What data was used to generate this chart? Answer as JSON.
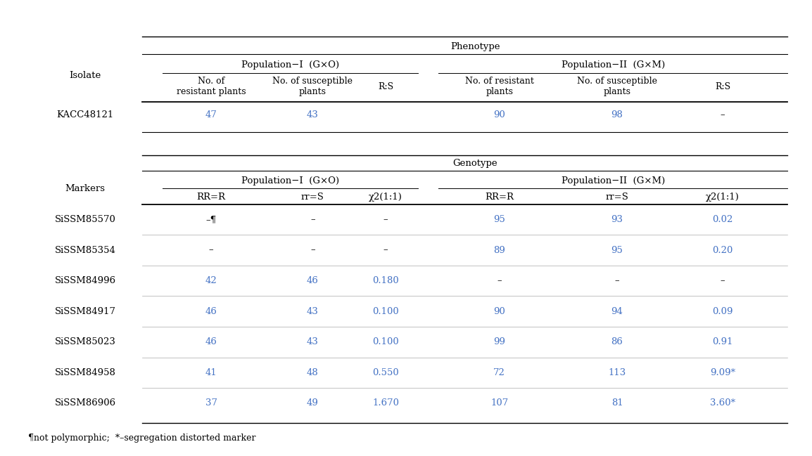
{
  "fig_width": 11.54,
  "fig_height": 6.49,
  "bg_color": "#ffffff",
  "text_color": "#000000",
  "blue_color": "#4472C4",
  "footnote": "¶not polymorphic;  *–segregation distorted marker",
  "phenotype_header": "Phenotype",
  "pop1_header": "Population−I  (G×O)",
  "pop2_header": "Population−II  (G×M)",
  "pheno_col_headers": [
    "No. of\nresistant plants",
    "No. of susceptible\nplants",
    "R:S",
    "No. of resistant\nplants",
    "No. of susceptible\nplants",
    "R:S"
  ],
  "pheno_row_label": "Isolate",
  "pheno_data_label": "KACC48121",
  "pheno_data": [
    "47",
    "43",
    "",
    "90",
    "98",
    "–"
  ],
  "pheno_data_colors": [
    "blue",
    "blue",
    "black",
    "blue",
    "blue",
    "black"
  ],
  "genotype_header": "Genotype",
  "geno_col_headers": [
    "RR=R",
    "rr=S",
    "χ2(1:1)",
    "RR=R",
    "rr=S",
    "χ2(1:1)"
  ],
  "geno_row_label": "Markers",
  "geno_markers": [
    "SiSSM85570",
    "SiSSM85354",
    "SiSSM84996",
    "SiSSM84917",
    "SiSSM85023",
    "SiSSM84958",
    "SiSSM86906"
  ],
  "geno_data": [
    [
      "–¶",
      "–",
      "–",
      "95",
      "93",
      "0.02"
    ],
    [
      "–",
      "–",
      "–",
      "89",
      "95",
      "0.20"
    ],
    [
      "42",
      "46",
      "0.180",
      "–",
      "–",
      "–"
    ],
    [
      "46",
      "43",
      "0.100",
      "90",
      "94",
      "0.09"
    ],
    [
      "46",
      "43",
      "0.100",
      "99",
      "86",
      "0.91"
    ],
    [
      "41",
      "48",
      "0.550",
      "72",
      "113",
      "9.09*"
    ],
    [
      "37",
      "49",
      "1.670",
      "107",
      "81",
      "3.60*"
    ]
  ],
  "geno_data_colors": [
    [
      "black",
      "black",
      "black",
      "blue",
      "blue",
      "blue"
    ],
    [
      "black",
      "black",
      "black",
      "blue",
      "blue",
      "blue"
    ],
    [
      "blue",
      "blue",
      "blue",
      "black",
      "black",
      "black"
    ],
    [
      "blue",
      "blue",
      "blue",
      "blue",
      "blue",
      "blue"
    ],
    [
      "blue",
      "blue",
      "blue",
      "blue",
      "blue",
      "blue"
    ],
    [
      "blue",
      "blue",
      "blue",
      "blue",
      "blue",
      "blue"
    ],
    [
      "blue",
      "blue",
      "blue",
      "blue",
      "blue",
      "blue"
    ]
  ]
}
